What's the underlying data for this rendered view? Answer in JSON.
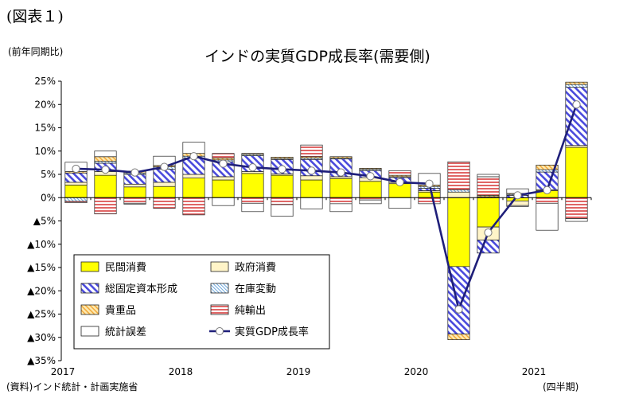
{
  "header": {
    "figure_label": "(図表１)",
    "unit_label": "(前年同期比)",
    "title": "インドの実質GDP成長率(需要側)"
  },
  "footer": {
    "source": "(資料)インド統計・計画実施省",
    "period_label": "(四半期)"
  },
  "chart_data": {
    "type": "bar",
    "subtype": "stacked bar with line overlay",
    "title": "インドの実質GDP成長率(需要側)",
    "ylabel": "(前年同期比)",
    "xlabel": "(四半期)",
    "ylim": [
      -35,
      25
    ],
    "y_ticks": [
      25,
      20,
      15,
      10,
      5,
      0,
      -5,
      -10,
      -15,
      -20,
      -25,
      -30,
      -35
    ],
    "y_tick_labels": [
      "25%",
      "20%",
      "15%",
      "10%",
      "5%",
      "0%",
      "▲5%",
      "▲10%",
      "▲15%",
      "▲20%",
      "▲25%",
      "▲30%",
      "▲35%"
    ],
    "grid": false,
    "legend_position": "bottom-left (inside plot area)",
    "x_year_labels": [
      {
        "label": "2017",
        "index": 0
      },
      {
        "label": "2018",
        "index": 4
      },
      {
        "label": "2019",
        "index": 8
      },
      {
        "label": "2020",
        "index": 12
      },
      {
        "label": "2021",
        "index": 16
      }
    ],
    "categories": [
      "2017Q1",
      "2017Q2",
      "2017Q3",
      "2017Q4",
      "2018Q1",
      "2018Q2",
      "2018Q3",
      "2018Q4",
      "2019Q1",
      "2019Q2",
      "2019Q3",
      "2019Q4",
      "2020Q1",
      "2020Q2",
      "2020Q3",
      "2020Q4",
      "2021Q1",
      "2021Q2"
    ],
    "series": [
      {
        "name": "民間消費",
        "kind": "bar",
        "style": "solid",
        "color": "#ffff00",
        "values": [
          2.7,
          4.8,
          2.3,
          2.4,
          4.2,
          3.8,
          5.2,
          4.8,
          3.8,
          4.1,
          3.5,
          3.0,
          1.2,
          -14.8,
          -6.3,
          -0.7,
          1.5,
          10.8
        ]
      },
      {
        "name": "政府消費",
        "kind": "bar",
        "style": "pale",
        "color": "#fff4c8",
        "values": [
          0.6,
          0.8,
          0.6,
          0.9,
          0.8,
          0.7,
          0.4,
          0.3,
          0.9,
          0.4,
          0.8,
          0.3,
          0.3,
          1.2,
          -2.8,
          -1.0,
          0.2,
          0.4
        ]
      },
      {
        "name": "総固定資本形成",
        "kind": "bar",
        "style": "diagonal hatch",
        "color": "#4a4adc",
        "values": [
          2.0,
          1.8,
          2.1,
          2.8,
          3.5,
          3.2,
          3.4,
          3.1,
          3.5,
          3.8,
          1.5,
          1.0,
          0.5,
          -14.5,
          -2.8,
          0.5,
          3.8,
          12.5
        ]
      },
      {
        "name": "在庫変動",
        "kind": "bar",
        "style": "fine hatch",
        "color": "#6fa8dc",
        "values": [
          -0.8,
          0.4,
          0.3,
          0.5,
          0.4,
          0.4,
          0.3,
          0.2,
          0.3,
          0.2,
          0.3,
          0.2,
          0.4,
          0.5,
          0.2,
          0.2,
          0.5,
          0.6
        ]
      },
      {
        "name": "貴重品",
        "kind": "bar",
        "style": "orange hatch",
        "color": "#f2a93b",
        "values": [
          0.3,
          1.0,
          0.4,
          0.3,
          0.6,
          0.4,
          0.2,
          0.3,
          0.3,
          0.3,
          0.2,
          0.3,
          0.3,
          -1.2,
          0.3,
          0.2,
          1.0,
          0.5
        ]
      },
      {
        "name": "純輸出",
        "kind": "bar",
        "style": "horizontal stripe",
        "color": "#e06666",
        "values": [
          -0.3,
          -3.5,
          -1.2,
          -2.3,
          -3.7,
          1.0,
          -1.2,
          -1.5,
          2.5,
          -1.3,
          -0.5,
          1.0,
          -1.3,
          6.0,
          4.0,
          -0.2,
          -1.2,
          -4.5
        ]
      },
      {
        "name": "統計誤差",
        "kind": "bar",
        "style": "white",
        "color": "#ffffff",
        "values": [
          2.0,
          1.2,
          -0.2,
          2.0,
          2.4,
          -1.7,
          -1.8,
          -2.5,
          -2.4,
          -1.7,
          -0.8,
          -2.3,
          2.5,
          0.0,
          0.5,
          1.0,
          -5.8,
          -0.6
        ]
      },
      {
        "name": "実質GDP成長率",
        "kind": "line",
        "color": "#1f1f7a",
        "marker": "white circle",
        "values": [
          6.2,
          6.0,
          5.4,
          6.6,
          8.9,
          7.3,
          6.5,
          6.1,
          5.8,
          5.4,
          4.6,
          3.3,
          3.0,
          -24.0,
          -7.5,
          0.5,
          1.6,
          20.0
        ]
      }
    ]
  }
}
